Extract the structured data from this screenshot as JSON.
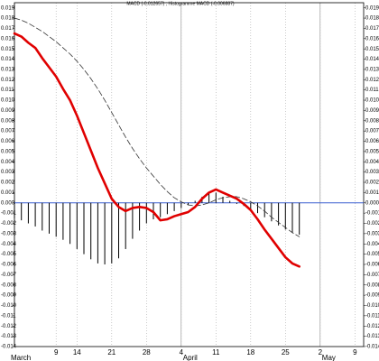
{
  "chart_data": {
    "type": "macd",
    "title": "MACD (-0.012657) ; Histogramme MACD (-0.006887)",
    "categories": [
      null,
      null,
      null,
      null,
      null,
      null,
      "9",
      null,
      null,
      "14",
      null,
      null,
      null,
      null,
      "21",
      null,
      null,
      null,
      null,
      "28",
      null,
      null,
      null,
      null,
      "4",
      null,
      null,
      null,
      null,
      "11",
      null,
      null,
      null,
      null,
      "18",
      null,
      null,
      null,
      null,
      "25",
      null,
      null,
      null,
      null,
      "2",
      null,
      null,
      null,
      null,
      "9",
      null
    ],
    "months": [
      "March",
      null,
      null,
      null,
      null,
      null,
      null,
      null,
      null,
      null,
      null,
      null,
      null,
      null,
      null,
      null,
      null,
      null,
      null,
      null,
      null,
      null,
      null,
      null,
      "April",
      null,
      null,
      null,
      null,
      null,
      null,
      null,
      null,
      null,
      null,
      null,
      null,
      null,
      null,
      null,
      null,
      null,
      null,
      null,
      "May",
      null,
      null,
      null,
      null,
      null,
      null
    ],
    "series": [
      {
        "style": "bars",
        "color": "#000000",
        "values": [
          -0.0015,
          -0.0017,
          -0.002,
          -0.0023,
          -0.0027,
          -0.003,
          -0.0033,
          -0.0036,
          -0.004,
          -0.0045,
          -0.005,
          -0.0055,
          -0.0059,
          -0.006,
          -0.0059,
          -0.0054,
          -0.0045,
          -0.0035,
          -0.0027,
          -0.002,
          -0.0016,
          -0.0014,
          -0.0011,
          -0.0008,
          -0.0005,
          -0.0002,
          0.0002,
          0.0006,
          0.0009,
          0.001,
          0.0006,
          0.0002,
          -0.0001,
          -0.0003,
          -0.0006,
          -0.001,
          -0.0014,
          -0.0018,
          -0.0022,
          -0.0026,
          -0.0029,
          -0.0031,
          null,
          null,
          null,
          null,
          null,
          null,
          null,
          null,
          null
        ]
      },
      {
        "style": "dashed",
        "color": "#333333",
        "values": [
          0.018,
          0.0178,
          0.0175,
          0.0171,
          0.0167,
          0.0162,
          0.0157,
          0.0151,
          0.0145,
          0.0138,
          0.013,
          0.0121,
          0.0111,
          0.01,
          0.0088,
          0.0076,
          0.0064,
          0.0053,
          0.0043,
          0.0034,
          0.0026,
          0.0018,
          0.0011,
          0.0005,
          0.0001,
          -0.0002,
          -0.0003,
          -0.0002,
          0,
          0.0003,
          0.0005,
          0.0006,
          0.0006,
          0.0004,
          0.0001,
          -0.0003,
          -0.0008,
          -0.0014,
          -0.0019,
          -0.0024,
          -0.0029,
          -0.0033,
          null,
          null,
          null,
          null,
          null,
          null,
          null,
          null,
          null
        ]
      },
      {
        "style": "solid",
        "color": "#e00000",
        "values": [
          0.0165,
          0.0162,
          0.0156,
          0.0151,
          0.0141,
          0.0132,
          0.0123,
          0.0111,
          0.01,
          0.0085,
          0.0068,
          0.0051,
          0.0034,
          0.0019,
          0.0004,
          -0.0004,
          -0.0008,
          -0.0005,
          -0.0004,
          -0.0005,
          -0.0009,
          -0.0017,
          -0.0016,
          -0.0013,
          -0.0011,
          -0.0009,
          -0.0004,
          0.0004,
          0.001,
          0.0013,
          0.001,
          0.0007,
          0.0004,
          -0.0001,
          -0.0007,
          -0.0016,
          -0.0026,
          -0.0035,
          -0.0044,
          -0.0053,
          -0.0059,
          -0.0062,
          null,
          null,
          null,
          null,
          null,
          null,
          null,
          null,
          null
        ]
      }
    ],
    "ylim": [
      -0.014,
      0.0195
    ],
    "yticks": [
      0.019,
      0.018,
      0.017,
      0.016,
      0.015,
      0.014,
      0.013,
      0.012,
      0.011,
      {
        "value": 0.01,
        "label": "0.010"
      },
      0.009,
      0.008,
      0.007,
      0.006,
      0.005,
      0.004,
      0.003,
      0.002,
      0.001,
      {
        "value": 0,
        "label": "0.000"
      },
      -0.001,
      -0.002,
      -0.003,
      -0.004,
      -0.005,
      -0.006,
      -0.007,
      -0.008,
      -0.009,
      {
        "value": -0.01,
        "label": "-0.010"
      },
      -0.011,
      -0.012,
      -0.013,
      -0.014
    ],
    "zero_line_color": "#3a5fd0",
    "grid": true
  }
}
